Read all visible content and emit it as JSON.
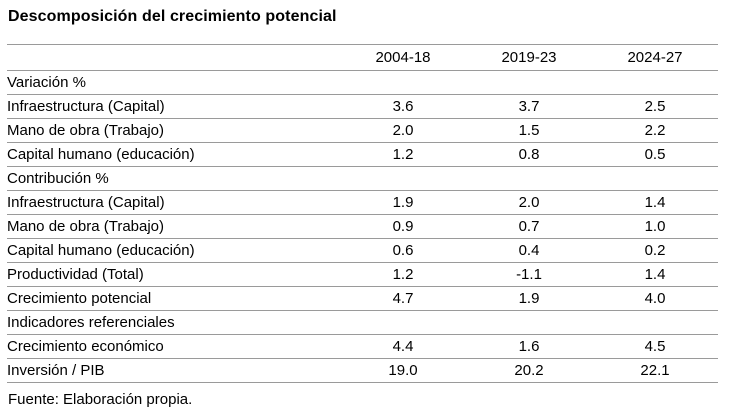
{
  "title": "Descomposición del crecimiento potencial",
  "table": {
    "columns": [
      "2004-18",
      "2019-23",
      "2024-27"
    ],
    "rows": [
      {
        "kind": "section",
        "label": "Variación %"
      },
      {
        "kind": "item",
        "label": "Infraestructura (Capital)",
        "v": [
          "3.6",
          "3.7",
          "2.5"
        ]
      },
      {
        "kind": "item",
        "label": "Mano de obra (Trabajo)",
        "v": [
          "2.0",
          "1.5",
          "2.2"
        ]
      },
      {
        "kind": "item",
        "label": "Capital humano (educación)",
        "v": [
          "1.2",
          "0.8",
          "0.5"
        ]
      },
      {
        "kind": "section",
        "label": "Contribución %"
      },
      {
        "kind": "item",
        "label": "Infraestructura (Capital)",
        "v": [
          "1.9",
          "2.0",
          "1.4"
        ]
      },
      {
        "kind": "item",
        "label": "Mano de obra (Trabajo)",
        "v": [
          "0.9",
          "0.7",
          "1.0"
        ]
      },
      {
        "kind": "item",
        "label": "Capital humano (educación)",
        "v": [
          "0.6",
          "0.4",
          "0.2"
        ]
      },
      {
        "kind": "item",
        "label": "Productividad (Total)",
        "v": [
          "1.2",
          "-1.1",
          "1.4"
        ]
      },
      {
        "kind": "item",
        "label": "Crecimiento potencial",
        "v": [
          "4.7",
          "1.9",
          "4.0"
        ]
      },
      {
        "kind": "section",
        "label": "Indicadores referenciales"
      },
      {
        "kind": "item",
        "label": "Crecimiento económico",
        "v": [
          "4.4",
          "1.6",
          "4.5"
        ]
      },
      {
        "kind": "item",
        "label": "Inversión / PIB",
        "v": [
          "19.0",
          "20.2",
          "22.1"
        ]
      }
    ]
  },
  "footer": {
    "source": "Fuente: Elaboración propia."
  },
  "colors": {
    "rule": "#9a9a9a",
    "text": "#000000",
    "background": "#ffffff"
  },
  "chart_data": {
    "type": "table",
    "title": "Descomposición del crecimiento potencial",
    "columns": [
      "2004-18",
      "2019-23",
      "2024-27"
    ],
    "sections": [
      {
        "name": "Variación %",
        "rows": [
          {
            "label": "Infraestructura (Capital)",
            "values": [
              3.6,
              3.7,
              2.5
            ]
          },
          {
            "label": "Mano de obra (Trabajo)",
            "values": [
              2.0,
              1.5,
              2.2
            ]
          },
          {
            "label": "Capital humano (educación)",
            "values": [
              1.2,
              0.8,
              0.5
            ]
          }
        ]
      },
      {
        "name": "Contribución %",
        "rows": [
          {
            "label": "Infraestructura (Capital)",
            "values": [
              1.9,
              2.0,
              1.4
            ]
          },
          {
            "label": "Mano de obra (Trabajo)",
            "values": [
              0.9,
              0.7,
              1.0
            ]
          },
          {
            "label": "Capital humano (educación)",
            "values": [
              0.6,
              0.4,
              0.2
            ]
          },
          {
            "label": "Productividad (Total)",
            "values": [
              1.2,
              -1.1,
              1.4
            ]
          },
          {
            "label": "Crecimiento potencial",
            "values": [
              4.7,
              1.9,
              4.0
            ]
          }
        ]
      },
      {
        "name": "Indicadores referenciales",
        "rows": [
          {
            "label": "Crecimiento económico",
            "values": [
              4.4,
              1.6,
              4.5
            ]
          },
          {
            "label": "Inversión / PIB",
            "values": [
              19.0,
              20.2,
              22.1
            ]
          }
        ]
      }
    ],
    "source": "Fuente: Elaboración propia.",
    "layout": {
      "grid": "horizontal-rules-only",
      "value_alignment": "center"
    }
  }
}
